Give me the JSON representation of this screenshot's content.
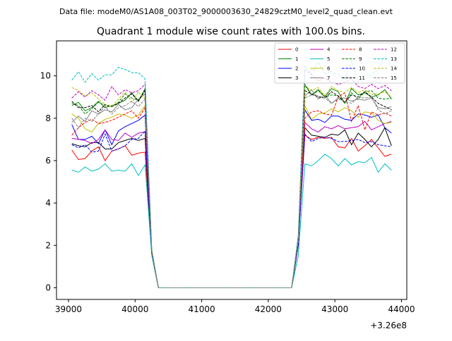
{
  "figure": {
    "suptitle": "Data file: modeM0/AS1A08_003T02_9000003630_24829cztM0_level2_quad_clean.evt",
    "title": "Quadrant 1 module wise count rates with 100.0s bins.",
    "offset_label": "+3.26e8"
  },
  "chart_data": {
    "type": "line",
    "title": "Quadrant 1 module wise count rates with 100.0s bins.",
    "xlabel": "",
    "ylabel": "",
    "x_offset": 326000000,
    "xlim": [
      38820,
      44080
    ],
    "ylim": [
      -0.55,
      11.65
    ],
    "xticks": [
      39000,
      40000,
      41000,
      42000,
      43000,
      44000
    ],
    "xtick_labels": [
      "39000",
      "40000",
      "41000",
      "42000",
      "43000",
      "44000"
    ],
    "yticks": [
      0,
      2,
      4,
      6,
      8,
      10
    ],
    "ytick_labels": [
      "0",
      "2",
      "4",
      "6",
      "8",
      "10"
    ],
    "grid": false,
    "legend_position": "top-right",
    "legend_columns": 4,
    "x": [
      39050,
      39150,
      39250,
      39350,
      39450,
      39550,
      39650,
      39750,
      39850,
      39950,
      40050,
      40150,
      40250,
      40350,
      40450,
      40550,
      40650,
      40750,
      40850,
      40950,
      41050,
      41150,
      41250,
      41350,
      41450,
      41550,
      41650,
      41750,
      41850,
      41950,
      42050,
      42150,
      42250,
      42350,
      42450,
      42550,
      42650,
      42750,
      42850,
      42950,
      43050,
      43150,
      43250,
      43350,
      43450,
      43550,
      43650,
      43750,
      43850
    ],
    "series": [
      {
        "name": "0",
        "color": "#ff0000",
        "dash": false,
        "values": [
          6.5,
          6.05,
          6.1,
          6.45,
          6.65,
          6.0,
          6.45,
          6.55,
          6.7,
          6.25,
          6.35,
          6.4,
          1.6,
          0,
          0,
          0,
          0,
          0,
          0,
          0,
          0,
          0,
          0,
          0,
          0,
          0,
          0,
          0,
          0,
          0,
          0,
          0,
          0,
          0,
          2.1,
          7.2,
          7.0,
          7.1,
          7.05,
          7.1,
          6.65,
          6.6,
          7.05,
          6.45,
          6.7,
          7.0,
          6.6,
          6.2,
          6.3
        ]
      },
      {
        "name": "1",
        "color": "#008000",
        "dash": false,
        "values": [
          8.6,
          8.75,
          8.35,
          8.5,
          8.8,
          8.5,
          8.6,
          8.7,
          8.85,
          9.2,
          8.8,
          9.4,
          1.75,
          0,
          0,
          0,
          0,
          0,
          0,
          0,
          0,
          0,
          0,
          0,
          0,
          0,
          0,
          0,
          0,
          0,
          0,
          0,
          0,
          0,
          2.3,
          9.6,
          9.1,
          9.35,
          9.0,
          9.4,
          9.25,
          8.7,
          9.4,
          9.1,
          9.2,
          9.0,
          9.1,
          9.35,
          8.9
        ]
      },
      {
        "name": "2",
        "color": "#0000ff",
        "dash": false,
        "values": [
          7.7,
          7.0,
          7.0,
          7.15,
          6.8,
          7.45,
          6.75,
          7.4,
          7.6,
          7.75,
          7.9,
          8.15,
          1.7,
          0,
          0,
          0,
          0,
          0,
          0,
          0,
          0,
          0,
          0,
          0,
          0,
          0,
          0,
          0,
          0,
          0,
          0,
          0,
          0,
          0,
          2.1,
          8.4,
          7.9,
          7.95,
          7.8,
          8.1,
          8.1,
          7.95,
          7.9,
          8.2,
          8.15,
          8.05,
          8.15,
          7.55,
          7.3
        ]
      },
      {
        "name": "3",
        "color": "#000000",
        "dash": false,
        "values": [
          6.8,
          6.7,
          6.65,
          6.85,
          6.85,
          6.55,
          6.55,
          6.85,
          6.95,
          7.05,
          6.95,
          7.05,
          1.6,
          0,
          0,
          0,
          0,
          0,
          0,
          0,
          0,
          0,
          0,
          0,
          0,
          0,
          0,
          0,
          0,
          0,
          0,
          0,
          0,
          0,
          2.0,
          7.55,
          7.2,
          7.15,
          7.1,
          7.25,
          7.2,
          7.45,
          6.75,
          7.3,
          7.0,
          6.65,
          7.0,
          7.55,
          6.7
        ]
      },
      {
        "name": "4",
        "color": "#bf00bf",
        "dash": false,
        "values": [
          7.05,
          7.0,
          6.95,
          6.8,
          7.0,
          7.45,
          7.0,
          6.95,
          7.3,
          7.1,
          7.3,
          7.35,
          1.65,
          0,
          0,
          0,
          0,
          0,
          0,
          0,
          0,
          0,
          0,
          0,
          0,
          0,
          0,
          0,
          0,
          0,
          0,
          0,
          0,
          0,
          2.0,
          7.8,
          7.5,
          7.35,
          7.6,
          7.5,
          7.65,
          7.5,
          7.55,
          7.6,
          7.85,
          7.45,
          7.6,
          7.75,
          7.85
        ]
      },
      {
        "name": "5",
        "color": "#00bfbf",
        "dash": false,
        "values": [
          5.55,
          5.45,
          5.7,
          5.5,
          5.6,
          5.85,
          5.5,
          5.55,
          5.5,
          5.85,
          5.3,
          5.8,
          1.55,
          0,
          0,
          0,
          0,
          0,
          0,
          0,
          0,
          0,
          0,
          0,
          0,
          0,
          0,
          0,
          0,
          0,
          0,
          0,
          0,
          0,
          1.5,
          5.85,
          5.75,
          6.0,
          6.3,
          6.1,
          5.75,
          6.1,
          5.8,
          5.95,
          5.9,
          6.15,
          5.45,
          5.85,
          5.55
        ]
      },
      {
        "name": "6",
        "color": "#bfbf00",
        "dash": false,
        "values": [
          8.2,
          8.0,
          7.5,
          7.35,
          7.75,
          7.95,
          8.05,
          8.2,
          8.15,
          8.0,
          8.15,
          8.6,
          1.7,
          0,
          0,
          0,
          0,
          0,
          0,
          0,
          0,
          0,
          0,
          0,
          0,
          0,
          0,
          0,
          0,
          0,
          0,
          0,
          0,
          0,
          2.2,
          8.6,
          7.95,
          8.2,
          8.25,
          8.45,
          8.3,
          8.5,
          8.35,
          8.05,
          8.3,
          8.25,
          7.9,
          7.75,
          7.8
        ]
      },
      {
        "name": "7",
        "color": "#808080",
        "dash": false,
        "values": [
          7.8,
          8.1,
          7.85,
          8.35,
          8.2,
          8.4,
          8.3,
          8.65,
          8.4,
          8.5,
          8.9,
          9.15,
          1.7,
          0,
          0,
          0,
          0,
          0,
          0,
          0,
          0,
          0,
          0,
          0,
          0,
          0,
          0,
          0,
          0,
          0,
          0,
          0,
          0,
          0,
          2.2,
          9.05,
          9.35,
          8.9,
          9.1,
          8.7,
          8.95,
          8.95,
          8.8,
          8.9,
          8.85,
          8.95,
          8.5,
          8.45,
          8.55
        ]
      },
      {
        "name": "8",
        "color": "#ff0000",
        "dash": true,
        "values": [
          7.2,
          7.55,
          7.8,
          7.95,
          7.75,
          7.8,
          7.9,
          8.05,
          8.2,
          8.35,
          8.0,
          8.5,
          1.7,
          0,
          0,
          0,
          0,
          0,
          0,
          0,
          0,
          0,
          0,
          0,
          0,
          0,
          0,
          0,
          0,
          0,
          0,
          0,
          0,
          0,
          2.2,
          8.0,
          8.3,
          8.35,
          8.2,
          8.15,
          9.0,
          9.2,
          7.85,
          8.6,
          7.45,
          8.3,
          8.15,
          8.25,
          8.1
        ]
      },
      {
        "name": "9",
        "color": "#008000",
        "dash": true,
        "values": [
          8.7,
          8.6,
          8.2,
          8.45,
          8.75,
          8.6,
          8.55,
          8.75,
          9.15,
          8.95,
          8.85,
          9.35,
          1.75,
          0,
          0,
          0,
          0,
          0,
          0,
          0,
          0,
          0,
          0,
          0,
          0,
          0,
          0,
          0,
          0,
          0,
          0,
          0,
          0,
          0,
          2.3,
          9.55,
          9.1,
          9.3,
          9.0,
          9.1,
          9.05,
          8.7,
          9.2,
          8.9,
          9.25,
          9.3,
          8.95,
          8.9,
          8.95
        ]
      },
      {
        "name": "10",
        "color": "#0000ff",
        "dash": true,
        "values": [
          6.75,
          6.6,
          6.75,
          6.4,
          6.45,
          7.25,
          6.45,
          6.55,
          6.7,
          7.0,
          7.05,
          7.4,
          1.65,
          0,
          0,
          0,
          0,
          0,
          0,
          0,
          0,
          0,
          0,
          0,
          0,
          0,
          0,
          0,
          0,
          0,
          0,
          0,
          0,
          0,
          2.05,
          7.25,
          6.9,
          7.05,
          7.1,
          7.05,
          6.9,
          6.9,
          6.95,
          7.0,
          6.85,
          6.9,
          6.75,
          6.7,
          6.65
        ]
      },
      {
        "name": "11",
        "color": "#000000",
        "dash": true,
        "values": [
          8.8,
          8.5,
          8.5,
          8.6,
          8.3,
          8.65,
          8.55,
          8.7,
          8.95,
          9.15,
          8.8,
          9.3,
          1.75,
          0,
          0,
          0,
          0,
          0,
          0,
          0,
          0,
          0,
          0,
          0,
          0,
          0,
          0,
          0,
          0,
          0,
          0,
          0,
          0,
          0,
          2.25,
          9.3,
          9.15,
          9.0,
          8.95,
          9.25,
          9.05,
          8.75,
          9.1,
          9.0,
          9.25,
          9.0,
          8.7,
          8.55,
          8.4
        ]
      },
      {
        "name": "12",
        "color": "#bf00bf",
        "dash": true,
        "values": [
          8.95,
          9.25,
          9.0,
          9.3,
          9.1,
          8.85,
          9.5,
          9.1,
          9.35,
          9.2,
          9.3,
          9.6,
          1.8,
          0,
          0,
          0,
          0,
          0,
          0,
          0,
          0,
          0,
          0,
          0,
          0,
          0,
          0,
          0,
          0,
          0,
          0,
          0,
          0,
          0,
          2.4,
          10.3,
          10.05,
          9.75,
          9.9,
          9.7,
          9.6,
          9.7,
          9.85,
          9.5,
          9.4,
          9.6,
          9.4,
          9.55,
          9.3
        ]
      },
      {
        "name": "13",
        "color": "#00bfbf",
        "dash": true,
        "values": [
          9.8,
          10.2,
          9.7,
          10.1,
          9.8,
          10.05,
          10.05,
          10.4,
          10.3,
          10.15,
          10.15,
          9.85,
          1.85,
          0,
          0,
          0,
          0,
          0,
          0,
          0,
          0,
          0,
          0,
          0,
          0,
          0,
          0,
          0,
          0,
          0,
          0,
          0,
          0,
          0,
          2.5,
          10.45,
          10.1,
          10.65,
          10.1,
          10.2,
          10.05,
          9.85,
          10.7,
          9.7,
          10.0,
          10.05,
          10.3,
          10.95,
          10.5
        ]
      },
      {
        "name": "14",
        "color": "#bfbf00",
        "dash": true,
        "values": [
          9.45,
          9.3,
          9.05,
          9.2,
          8.9,
          8.65,
          8.55,
          8.9,
          9.25,
          8.75,
          9.25,
          8.9,
          1.8,
          0,
          0,
          0,
          0,
          0,
          0,
          0,
          0,
          0,
          0,
          0,
          0,
          0,
          0,
          0,
          0,
          0,
          0,
          0,
          0,
          0,
          2.3,
          9.55,
          9.3,
          9.45,
          9.05,
          9.5,
          9.3,
          9.2,
          9.45,
          9.2,
          9.35,
          9.1,
          9.15,
          9.25,
          9.0
        ]
      },
      {
        "name": "15",
        "color": "#808080",
        "dash": true,
        "values": [
          8.0,
          7.55,
          8.0,
          7.85,
          8.2,
          8.55,
          8.2,
          8.5,
          8.6,
          8.8,
          8.55,
          8.9,
          1.7,
          0,
          0,
          0,
          0,
          0,
          0,
          0,
          0,
          0,
          0,
          0,
          0,
          0,
          0,
          0,
          0,
          0,
          0,
          0,
          0,
          0,
          2.2,
          8.95,
          9.1,
          9.05,
          8.95,
          8.7,
          8.9,
          8.8,
          8.7,
          9.0,
          8.95,
          9.0,
          8.4,
          8.2,
          8.35
        ]
      }
    ]
  }
}
